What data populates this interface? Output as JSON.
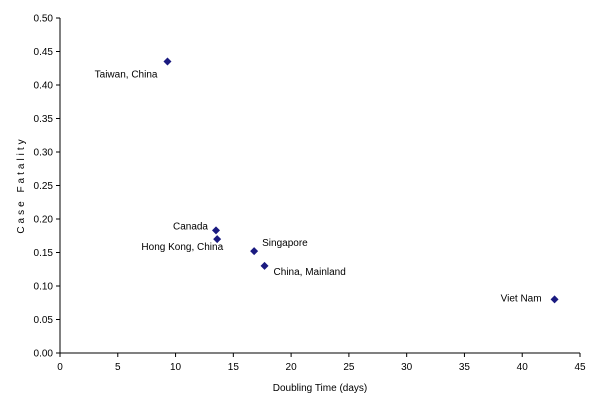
{
  "chart_data": {
    "type": "scatter",
    "title": "",
    "xlabel": "Doubling Time (days)",
    "ylabel": "Case Fatality",
    "xlim": [
      0,
      45
    ],
    "ylim": [
      0,
      0.5
    ],
    "xticks": [
      0,
      5,
      10,
      15,
      20,
      25,
      30,
      35,
      40,
      45
    ],
    "yticks": [
      0,
      0.05,
      0.1,
      0.15,
      0.2,
      0.25,
      0.3,
      0.35,
      0.4,
      0.45,
      0.5
    ],
    "xtick_labels": [
      "0",
      "5",
      "10",
      "15",
      "20",
      "25",
      "30",
      "35",
      "40",
      "45"
    ],
    "ytick_labels": [
      "0.00",
      "0.05",
      "0.10",
      "0.15",
      "0.20",
      "0.25",
      "0.30",
      "0.35",
      "0.40",
      "0.45",
      "0.50"
    ],
    "grid": false,
    "legend": "none",
    "marker": "diamond",
    "color": "#1a1a80",
    "points": [
      {
        "label": "Taiwan, China",
        "x": 9.3,
        "y": 0.435
      },
      {
        "label": "Canada",
        "x": 13.5,
        "y": 0.183
      },
      {
        "label": "Hong Kong, China",
        "x": 13.6,
        "y": 0.17
      },
      {
        "label": "Singapore",
        "x": 16.8,
        "y": 0.152
      },
      {
        "label": "China, Mainland",
        "x": 17.7,
        "y": 0.13
      },
      {
        "label": "Viet Nam",
        "x": 42.8,
        "y": 0.08
      }
    ]
  }
}
